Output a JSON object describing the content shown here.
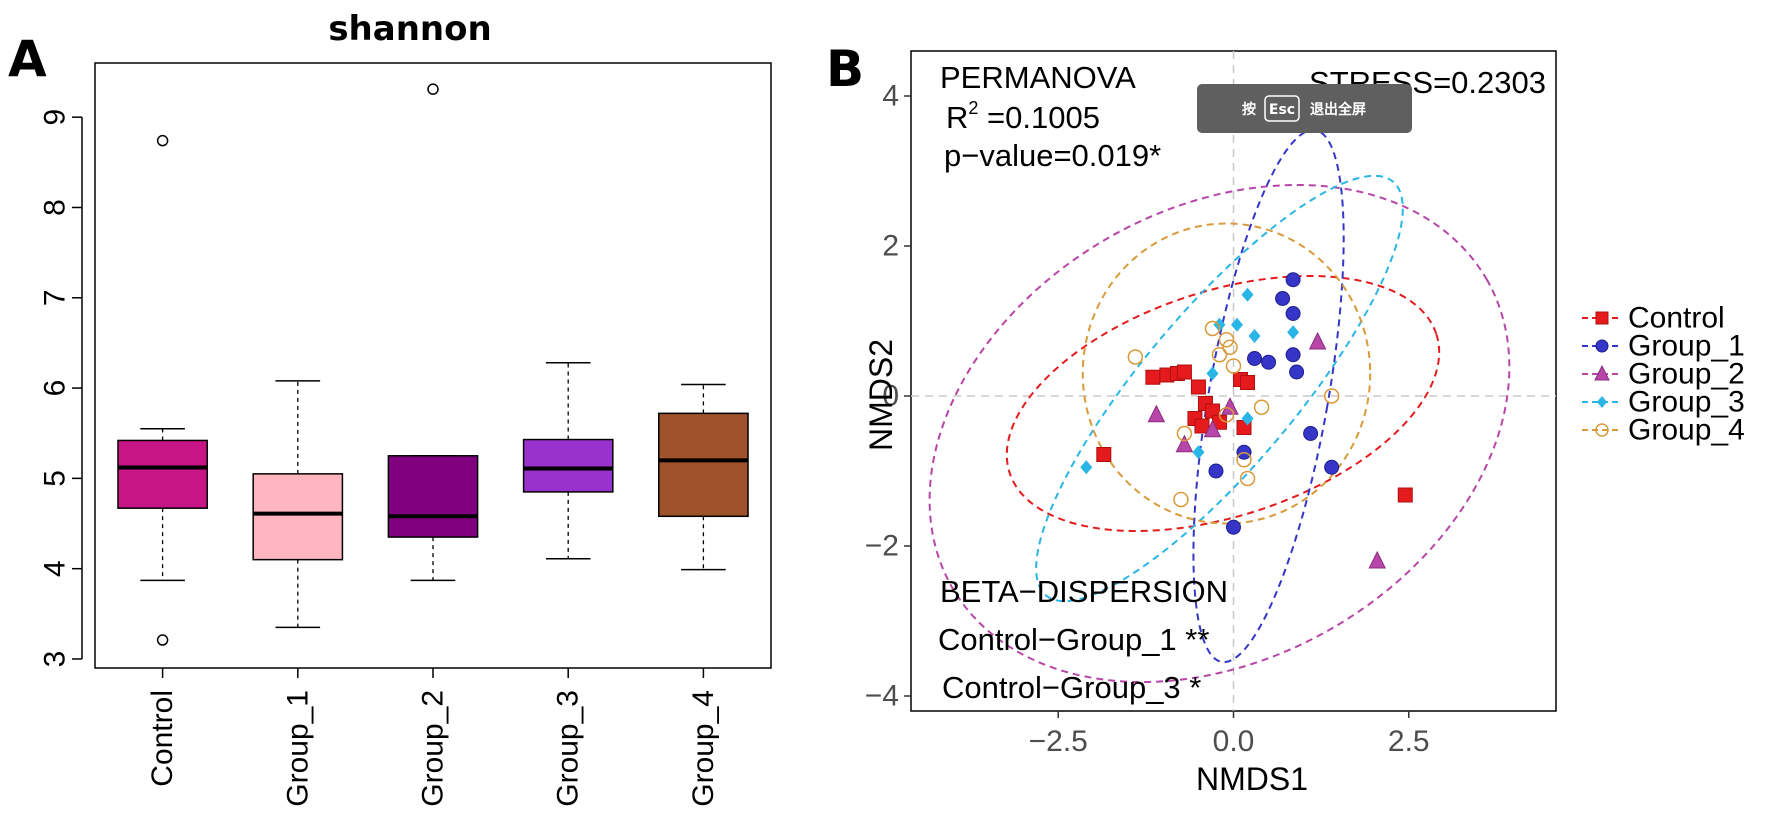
{
  "panel_a_letter": "A",
  "panel_b_letter": "B",
  "esc_overlay": {
    "prefix": "按",
    "key": "Esc",
    "suffix": "退出全屏"
  },
  "chart_data": [
    {
      "type": "box",
      "title": "shannon",
      "xlabel": "",
      "ylabel": "",
      "ylim": [
        2.9,
        9.6
      ],
      "yticks": [
        3,
        4,
        5,
        6,
        7,
        8,
        9
      ],
      "categories": [
        "Control",
        "Group_1",
        "Group_2",
        "Group_3",
        "Group_4"
      ],
      "colors": [
        "#c71585",
        "#ffb6c1",
        "#800080",
        "#9932cc",
        "#a0522d"
      ],
      "boxes": [
        {
          "whisker_low": 3.87,
          "q1": 4.67,
          "median": 5.12,
          "q3": 5.42,
          "whisker_high": 5.55,
          "outliers": [
            8.74,
            3.21
          ]
        },
        {
          "whisker_low": 3.35,
          "q1": 4.1,
          "median": 4.61,
          "q3": 5.05,
          "whisker_high": 6.08,
          "outliers": []
        },
        {
          "whisker_low": 3.87,
          "q1": 4.35,
          "median": 4.58,
          "q3": 5.25,
          "whisker_high": 5.25,
          "outliers": [
            9.31
          ]
        },
        {
          "whisker_low": 4.11,
          "q1": 4.85,
          "median": 5.11,
          "q3": 5.43,
          "whisker_high": 6.28,
          "outliers": []
        },
        {
          "whisker_low": 3.99,
          "q1": 4.58,
          "median": 5.2,
          "q3": 5.72,
          "whisker_high": 6.04,
          "outliers": []
        }
      ]
    },
    {
      "type": "scatter",
      "title": "",
      "xlabel": "NMDS1",
      "ylabel": "NMDS2",
      "xlim": [
        -4.6,
        4.6
      ],
      "ylim": [
        -4.2,
        4.6
      ],
      "xticks": [
        -2.5,
        0,
        2.5
      ],
      "xtick_labels": [
        "−2.5",
        "0.0",
        "2.5"
      ],
      "yticks": [
        -4,
        -2,
        0,
        2,
        4
      ],
      "ytick_labels": [
        "−4",
        "−2",
        "0",
        "2",
        "4"
      ],
      "permanova_label": "PERMANOVA",
      "r2_label": "R",
      "r2_sup": "2",
      "r2_value": " =0.1005",
      "pvalue_label": "p−value=0.019*",
      "stress_label": "STRESS=0.2303",
      "beta_title": "BETA−DISPERSION",
      "beta_lines": [
        "Control−Group_1 **",
        "Control−Group_3 *"
      ],
      "series": [
        {
          "name": "Control",
          "color": "#e41a1c",
          "marker": "square",
          "points": [
            [
              -1.85,
              -0.78
            ],
            [
              -1.15,
              0.25
            ],
            [
              -0.95,
              0.28
            ],
            [
              -0.8,
              0.3
            ],
            [
              -0.7,
              0.32
            ],
            [
              -0.5,
              0.12
            ],
            [
              -0.4,
              -0.1
            ],
            [
              -0.55,
              -0.3
            ],
            [
              -0.45,
              -0.4
            ],
            [
              -0.3,
              -0.2
            ],
            [
              -0.2,
              -0.35
            ],
            [
              0.1,
              0.22
            ],
            [
              0.2,
              0.18
            ],
            [
              0.15,
              -0.42
            ],
            [
              2.45,
              -1.32
            ]
          ],
          "ellipse": {
            "cx": -0.15,
            "cy": -0.1,
            "rx": 3.2,
            "ry": 1.5,
            "angle": -18
          }
        },
        {
          "name": "Group_1",
          "color": "#3535c8",
          "marker": "circle",
          "points": [
            [
              0.85,
              1.55
            ],
            [
              0.7,
              1.3
            ],
            [
              0.85,
              1.1
            ],
            [
              0.3,
              0.5
            ],
            [
              0.5,
              0.45
            ],
            [
              0.85,
              0.55
            ],
            [
              0.9,
              0.32
            ],
            [
              1.1,
              -0.5
            ],
            [
              1.4,
              -0.95
            ],
            [
              0.0,
              -1.75
            ],
            [
              -0.25,
              -1.0
            ],
            [
              0.15,
              -0.75
            ]
          ],
          "ellipse": {
            "cx": 0.5,
            "cy": 0.0,
            "rx": 0.85,
            "ry": 3.6,
            "angle": 10
          }
        },
        {
          "name": "Group_2",
          "color": "#b845a8",
          "marker": "triangle",
          "points": [
            [
              -1.1,
              -0.25
            ],
            [
              -0.7,
              -0.65
            ],
            [
              -0.3,
              -0.45
            ],
            [
              -0.05,
              -0.15
            ],
            [
              1.2,
              0.72
            ],
            [
              2.05,
              -2.2
            ]
          ],
          "ellipse": {
            "cx": -0.2,
            "cy": -0.5,
            "rx": 4.4,
            "ry": 3.0,
            "angle": -30
          }
        },
        {
          "name": "Group_3",
          "color": "#29b6e6",
          "marker": "diamond",
          "points": [
            [
              -2.1,
              -0.95
            ],
            [
              -0.3,
              0.3
            ],
            [
              -0.2,
              0.95
            ],
            [
              0.05,
              0.95
            ],
            [
              0.2,
              1.35
            ],
            [
              0.3,
              0.8
            ],
            [
              0.2,
              -0.3
            ],
            [
              0.85,
              0.85
            ],
            [
              -0.5,
              -0.75
            ]
          ],
          "ellipse": {
            "cx": -0.2,
            "cy": 0.1,
            "rx": 1.1,
            "ry": 3.6,
            "angle": 40
          }
        },
        {
          "name": "Group_4",
          "color": "#d99a3a",
          "marker": "open-circle",
          "points": [
            [
              -1.4,
              0.52
            ],
            [
              -0.7,
              -0.5
            ],
            [
              -0.75,
              -1.38
            ],
            [
              -0.3,
              0.9
            ],
            [
              -0.2,
              0.55
            ],
            [
              -0.05,
              0.65
            ],
            [
              0.0,
              0.4
            ],
            [
              -0.1,
              -0.25
            ],
            [
              0.4,
              -0.15
            ],
            [
              0.15,
              -0.85
            ],
            [
              0.2,
              -1.1
            ],
            [
              1.4,
              0.0
            ],
            [
              -0.1,
              0.75
            ]
          ],
          "ellipse": {
            "cx": -0.1,
            "cy": 0.3,
            "rx": 2.05,
            "ry": 2.0,
            "angle": 0
          }
        }
      ]
    }
  ]
}
